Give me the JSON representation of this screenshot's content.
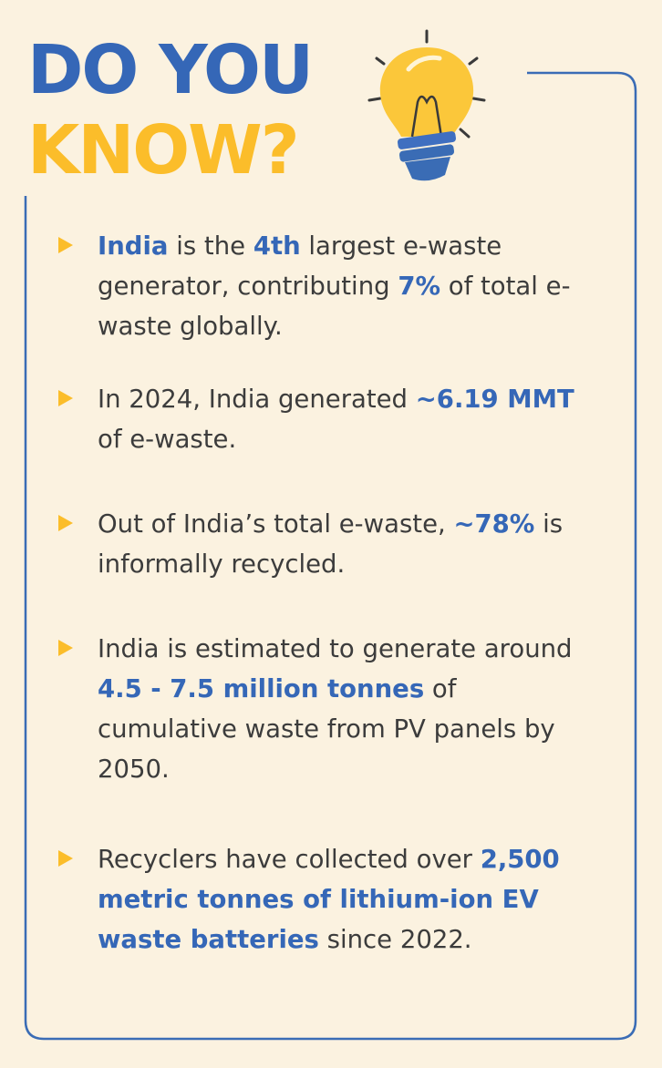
{
  "header": {
    "line1": "DO YOU",
    "line2": "KNOW?"
  },
  "items": [
    {
      "segments": [
        {
          "text": "India",
          "bold": true
        },
        {
          "text": " is the ",
          "bold": false
        },
        {
          "text": "4th",
          "bold": true
        },
        {
          "text": " largest e-waste generator, contributing ",
          "bold": false
        },
        {
          "text": "7%",
          "bold": true
        },
        {
          "text": " of total e-waste globally.",
          "bold": false
        }
      ]
    },
    {
      "segments": [
        {
          "text": "In 2024, India generated ",
          "bold": false
        },
        {
          "text": "~6.19 MMT",
          "bold": true
        },
        {
          "text": " of e-waste.",
          "bold": false
        }
      ]
    },
    {
      "segments": [
        {
          "text": "Out of India’s total e-waste, ",
          "bold": false
        },
        {
          "text": "~78%",
          "bold": true
        },
        {
          "text": " is informally recycled.",
          "bold": false
        }
      ]
    },
    {
      "segments": [
        {
          "text": "India is estimated to generate around ",
          "bold": false
        },
        {
          "text": "4.5 - 7.5 million tonnes",
          "bold": true
        },
        {
          "text": " of cumulative waste from PV panels by 2050.",
          "bold": false
        }
      ]
    },
    {
      "segments": [
        {
          "text": "Recyclers have collected over ",
          "bold": false
        },
        {
          "text": "2,500 metric tonnes of lithium-ion EV waste batteries",
          "bold": true
        },
        {
          "text": " since 2022.",
          "bold": false
        }
      ]
    }
  ]
}
